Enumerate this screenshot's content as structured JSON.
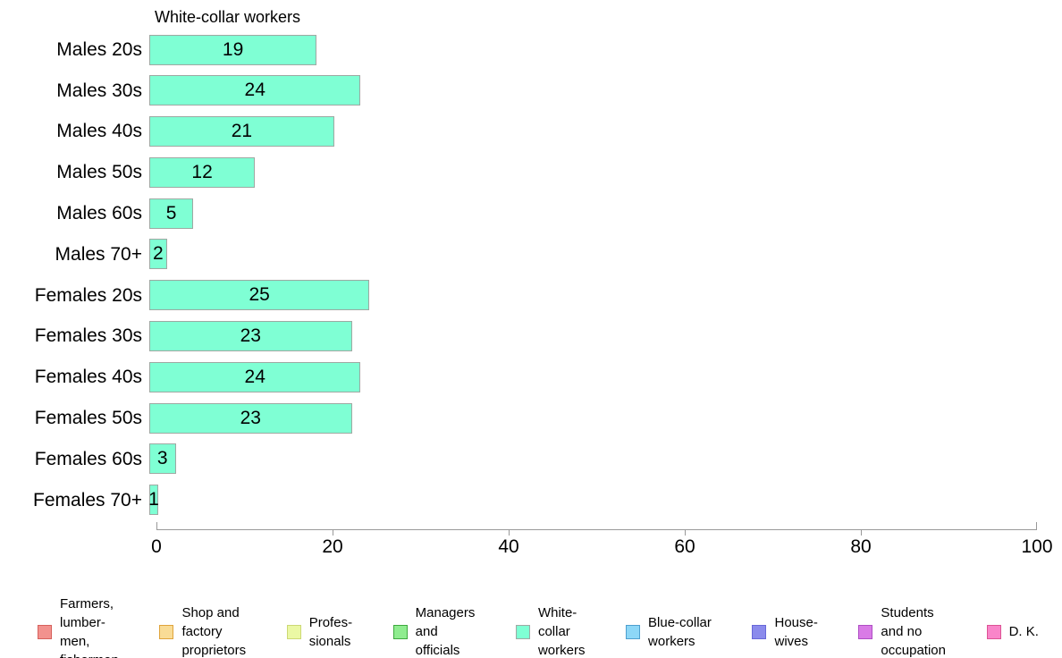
{
  "chart_data": {
    "type": "bar",
    "orientation": "horizontal",
    "title": "White-collar workers",
    "categories": [
      "Males 20s",
      "Males 30s",
      "Males 40s",
      "Males 50s",
      "Males 60s",
      "Males 70+",
      "Females 20s",
      "Females 30s",
      "Females 40s",
      "Females 50s",
      "Females 60s",
      "Females 70+"
    ],
    "values": [
      19,
      24,
      21,
      12,
      5,
      2,
      25,
      23,
      24,
      23,
      3,
      1
    ],
    "xlabel": "",
    "ylabel": "",
    "xlim": [
      0,
      100
    ],
    "x_ticks": [
      0,
      20,
      40,
      60,
      80,
      100
    ],
    "grid": false,
    "bar_fill": "#7FFFD4",
    "bar_border": "#9EA8A2",
    "axis_color": "#999999",
    "legend_position": "bottom",
    "legend": [
      {
        "label": "Farmers,\nlumber-\nmen,\nfishermen",
        "fill": "#F2928E",
        "border": "#D6615C"
      },
      {
        "label": "Shop and\nfactory\nproprietors",
        "fill": "#F9DC96",
        "border": "#DFA43C"
      },
      {
        "label": "Profes-\nsionals",
        "fill": "#EBF8A4",
        "border": "#CCD874"
      },
      {
        "label": "Managers\nand\nofficials",
        "fill": "#8FEC8F",
        "border": "#3EA93E"
      },
      {
        "label": "White-\ncollar\nworkers",
        "fill": "#7FFFD4",
        "border": "#9FA8A3"
      },
      {
        "label": "Blue-collar\nworkers",
        "fill": "#8DD7F7",
        "border": "#4E9FCE"
      },
      {
        "label": "House-\nwives",
        "fill": "#8B8BEC",
        "border": "#6868D8"
      },
      {
        "label": "Students\nand no\noccupation",
        "fill": "#D97BE6",
        "border": "#AE4EC4"
      },
      {
        "label": "D. K.",
        "fill": "#F985C9",
        "border": "#DC5394"
      }
    ]
  }
}
